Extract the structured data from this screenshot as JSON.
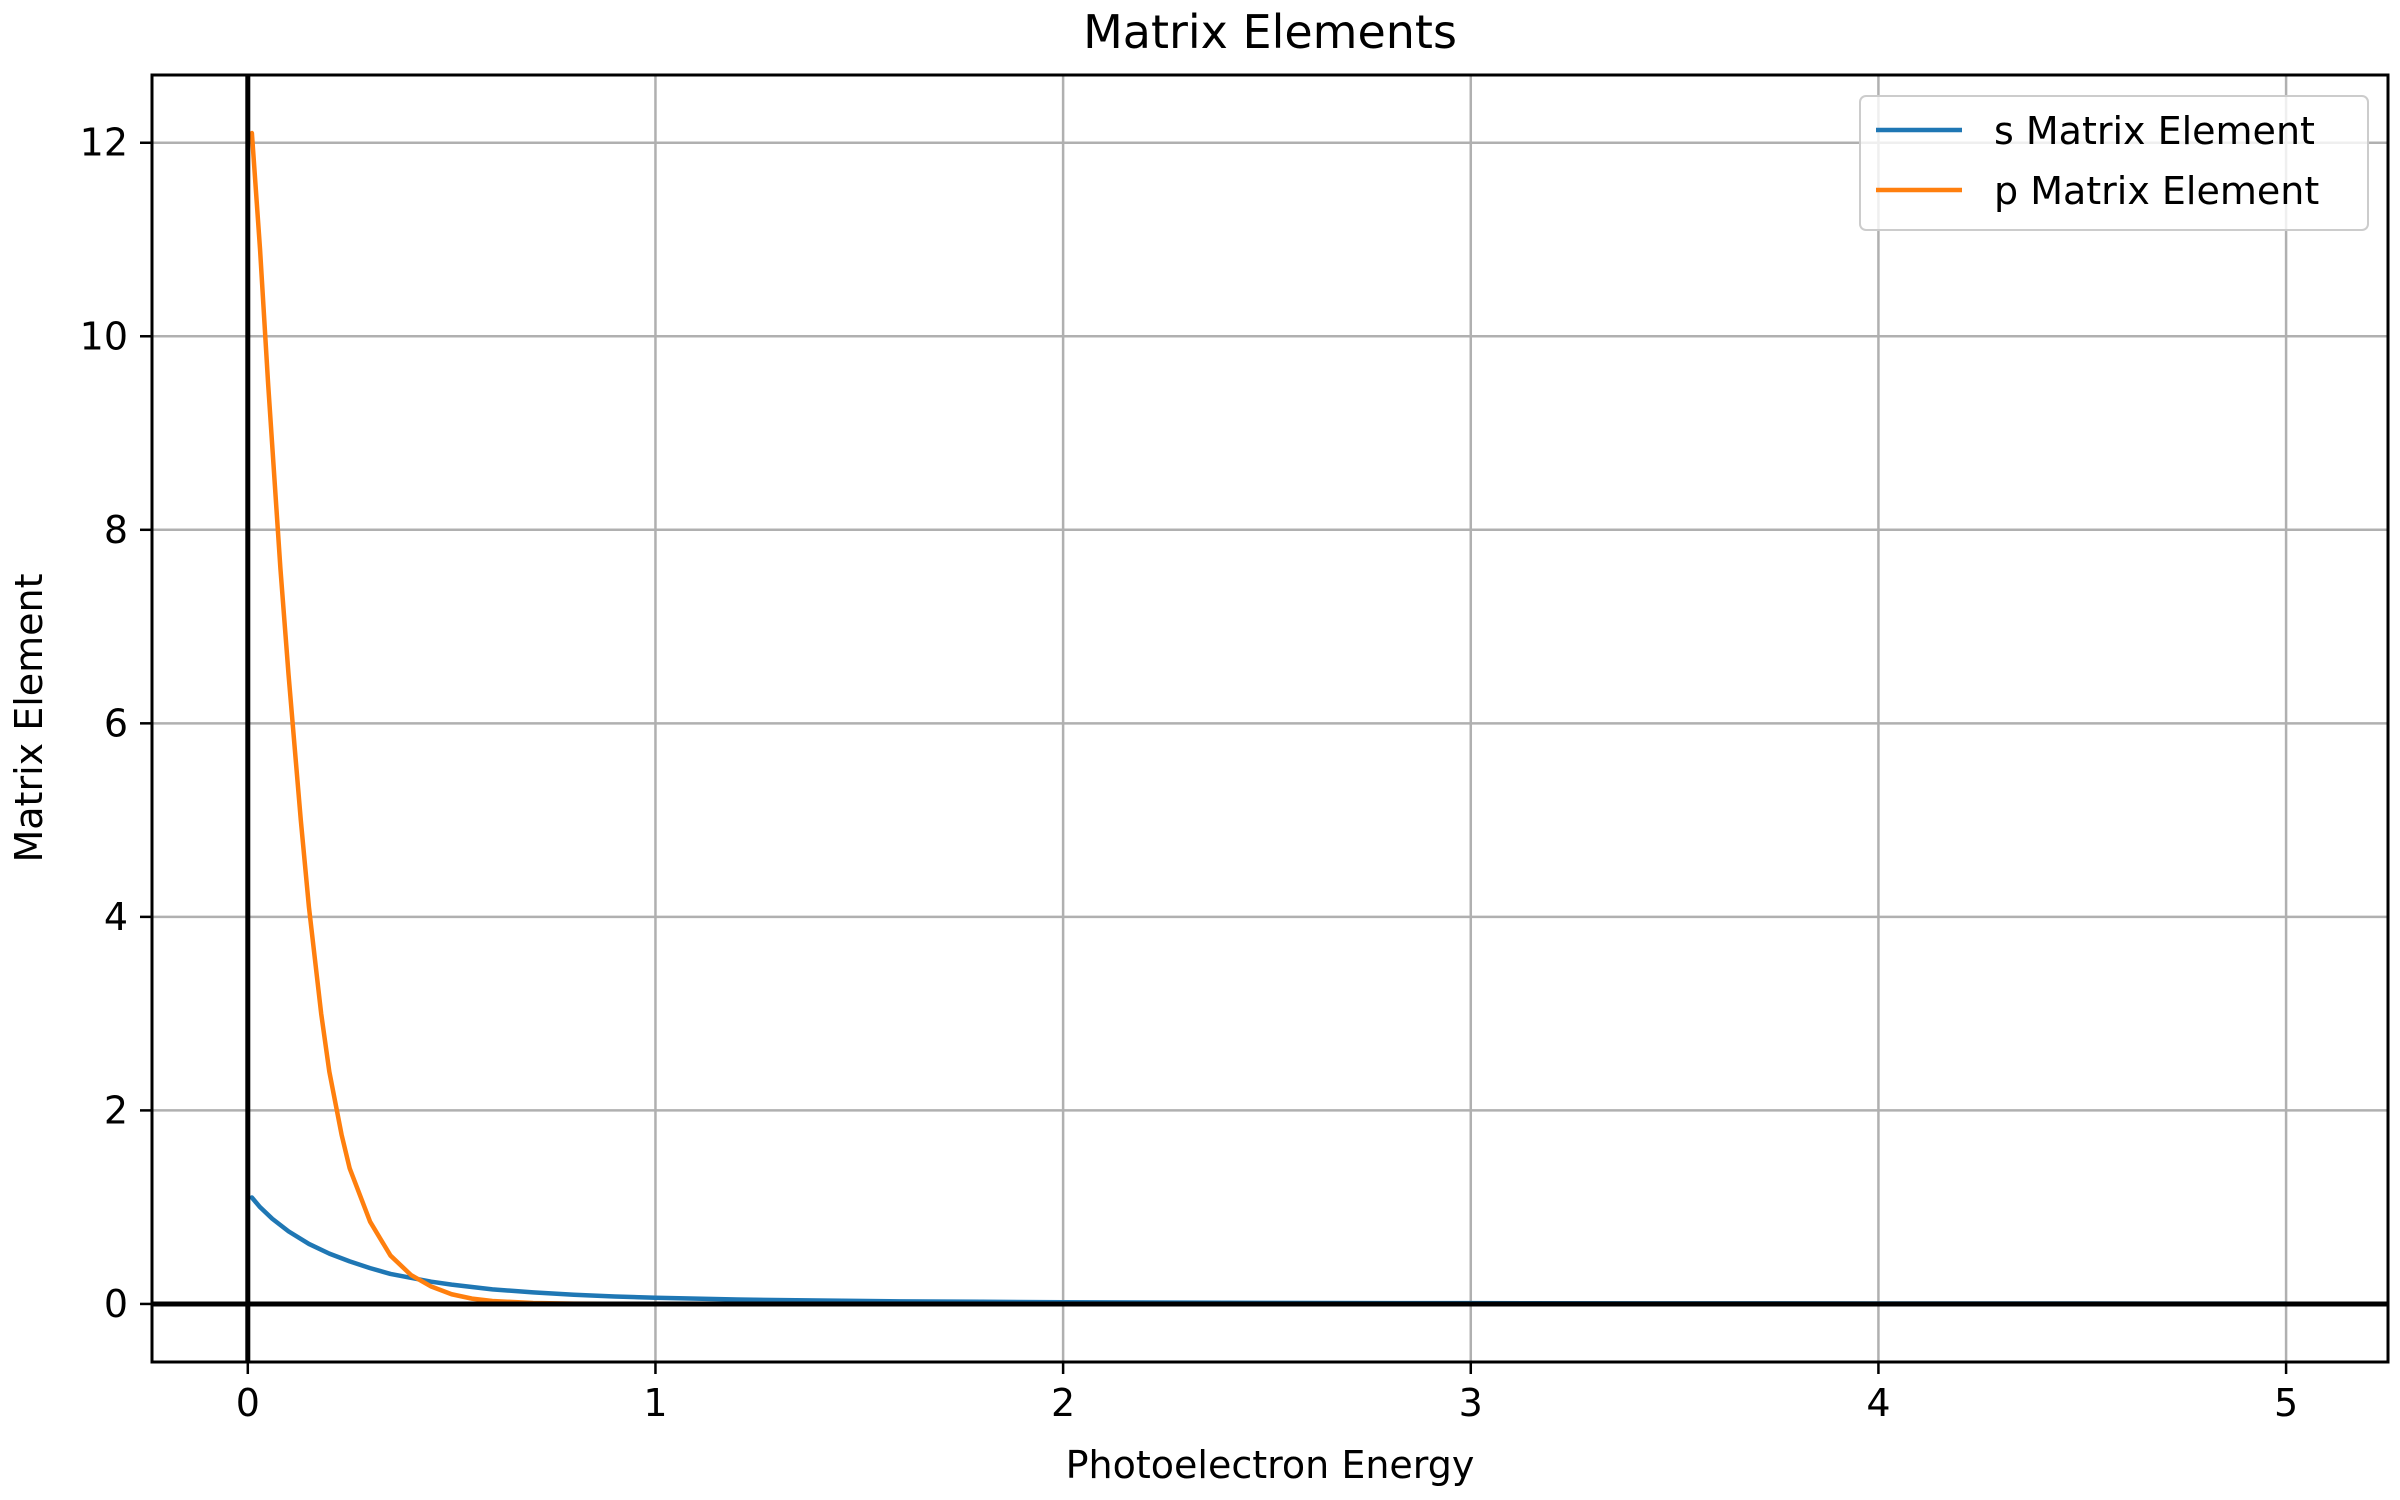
{
  "chart_data": {
    "type": "line",
    "title": "Matrix Elements",
    "xlabel": "Photoelectron Energy",
    "ylabel": "Matrix Element",
    "xlim": [
      -0.235,
      5.25
    ],
    "ylim": [
      -0.6,
      12.7
    ],
    "x_ticks": [
      0,
      1,
      2,
      3,
      4,
      5
    ],
    "y_ticks": [
      0,
      2,
      4,
      6,
      8,
      10,
      12
    ],
    "grid": true,
    "legend_position": "top-right",
    "reference_lines": {
      "x": 0,
      "y": 0
    },
    "series": [
      {
        "name": "s Matrix Element",
        "color": "#1f77b4",
        "points": [
          [
            0.01,
            1.1
          ],
          [
            0.03,
            1.0
          ],
          [
            0.06,
            0.88
          ],
          [
            0.1,
            0.75
          ],
          [
            0.15,
            0.62
          ],
          [
            0.2,
            0.52
          ],
          [
            0.25,
            0.44
          ],
          [
            0.3,
            0.37
          ],
          [
            0.35,
            0.31
          ],
          [
            0.4,
            0.27
          ],
          [
            0.45,
            0.23
          ],
          [
            0.5,
            0.2
          ],
          [
            0.6,
            0.15
          ],
          [
            0.7,
            0.12
          ],
          [
            0.8,
            0.095
          ],
          [
            0.9,
            0.077
          ],
          [
            1.0,
            0.064
          ],
          [
            1.2,
            0.046
          ],
          [
            1.4,
            0.035
          ],
          [
            1.6,
            0.027
          ],
          [
            1.8,
            0.022
          ],
          [
            2.0,
            0.018
          ],
          [
            2.5,
            0.011
          ],
          [
            3.0,
            0.008
          ],
          [
            3.5,
            0.006
          ],
          [
            4.0,
            0.005
          ],
          [
            4.5,
            0.004
          ],
          [
            5.0,
            0.003
          ]
        ]
      },
      {
        "name": "p Matrix Element",
        "color": "#ff7f0e",
        "points": [
          [
            0.01,
            12.1
          ],
          [
            0.03,
            10.9
          ],
          [
            0.05,
            9.5
          ],
          [
            0.08,
            7.6
          ],
          [
            0.1,
            6.5
          ],
          [
            0.13,
            5.0
          ],
          [
            0.15,
            4.1
          ],
          [
            0.18,
            3.0
          ],
          [
            0.2,
            2.4
          ],
          [
            0.23,
            1.75
          ],
          [
            0.25,
            1.4
          ],
          [
            0.3,
            0.85
          ],
          [
            0.35,
            0.5
          ],
          [
            0.4,
            0.3
          ],
          [
            0.45,
            0.18
          ],
          [
            0.5,
            0.1
          ],
          [
            0.55,
            0.055
          ],
          [
            0.6,
            0.03
          ],
          [
            0.7,
            0.01
          ],
          [
            0.8,
            0.003
          ],
          [
            1.0,
            0.0
          ],
          [
            2.0,
            0.0
          ],
          [
            3.0,
            0.0
          ],
          [
            4.0,
            0.0
          ],
          [
            5.0,
            0.0
          ]
        ]
      }
    ]
  }
}
